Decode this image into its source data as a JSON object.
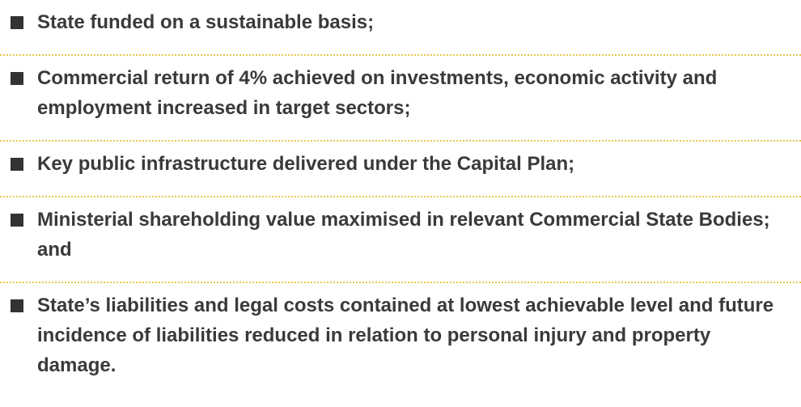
{
  "items": [
    "State funded on a sustainable basis;",
    "Commercial return of 4% achieved on investments, economic activity and employment increased in target sectors;",
    "Key public infrastructure delivered under the Capital Plan;",
    "Ministerial shareholding value maximised in relevant Commercial State Bodies; and",
    "State’s liabilities and legal costs contained at lowest achievable level and future incidence of liabilities reduced in relation to personal injury and property damage."
  ]
}
